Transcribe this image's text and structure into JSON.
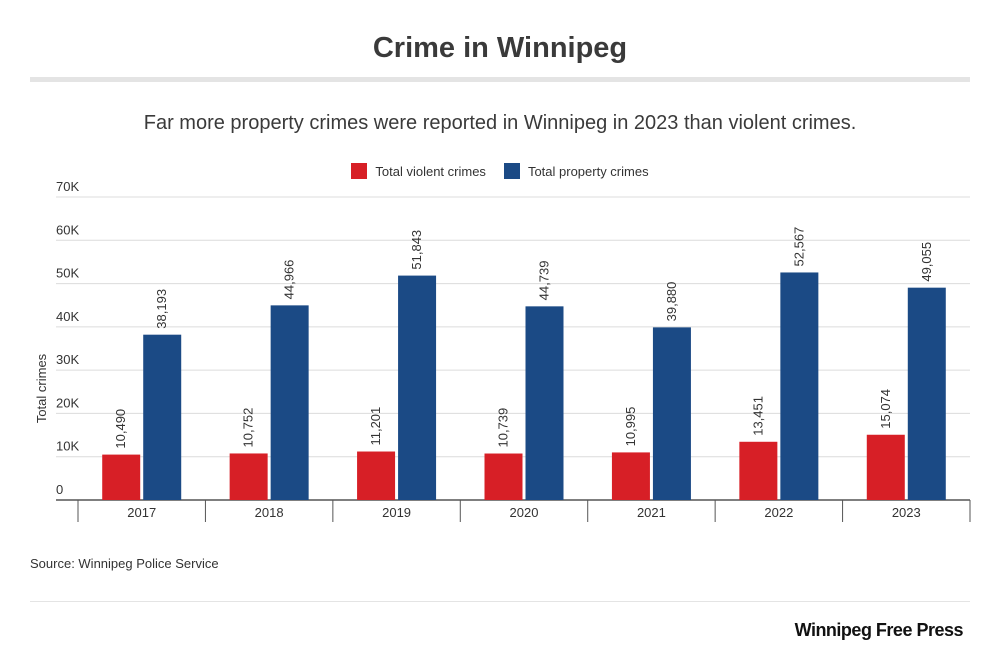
{
  "header": {
    "title": "Crime in Winnipeg",
    "subtitle": "Far more property crimes were reported in Winnipeg in 2023 than violent crimes."
  },
  "legend": {
    "items": [
      {
        "label": "Total violent crimes",
        "color": "#d71f26"
      },
      {
        "label": "Total property crimes",
        "color": "#1b4a85"
      }
    ]
  },
  "chart_data": {
    "type": "bar",
    "title": "Crime in Winnipeg",
    "subtitle": "Far more property crimes were reported in Winnipeg in 2023 than violent crimes.",
    "xlabel": "",
    "ylabel": "Total crimes",
    "ylim": [
      0,
      70000
    ],
    "y_ticks": [
      0,
      10000,
      20000,
      30000,
      40000,
      50000,
      60000,
      70000
    ],
    "y_tick_labels": [
      "0",
      "10K",
      "20K",
      "30K",
      "40K",
      "50K",
      "60K",
      "70K"
    ],
    "grid": true,
    "legend_position": "top-center",
    "categories": [
      "2017",
      "2018",
      "2019",
      "2020",
      "2021",
      "2022",
      "2023"
    ],
    "series": [
      {
        "name": "Total violent crimes",
        "color": "#d71f26",
        "values": [
          10490,
          10752,
          11201,
          10739,
          10995,
          13451,
          15074
        ],
        "labels": [
          "10,490",
          "10,752",
          "11,201",
          "10,739",
          "10,995",
          "13,451",
          "15,074"
        ]
      },
      {
        "name": "Total property crimes",
        "color": "#1b4a85",
        "values": [
          38193,
          44966,
          51843,
          44739,
          39880,
          52567,
          49055
        ],
        "labels": [
          "38,193",
          "44,966",
          "51,843",
          "44,739",
          "39,880",
          "52,567",
          "49,055"
        ]
      }
    ]
  },
  "footer": {
    "source": "Source: Winnipeg Police Service",
    "brand": "Winnipeg Free Press"
  }
}
